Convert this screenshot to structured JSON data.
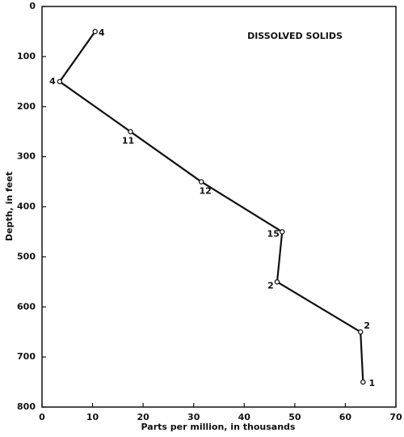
{
  "chart_data": {
    "type": "line",
    "title": "DISSOLVED SOLIDS",
    "x_label": "Parts per million, in thousands",
    "y_label": "Depth, in feet",
    "x": [
      10.5,
      3.5,
      17.5,
      31.5,
      47.5,
      46.5,
      63,
      63.5
    ],
    "values": [
      50,
      150,
      250,
      350,
      450,
      550,
      650,
      750
    ],
    "sample_counts": [
      4,
      4,
      11,
      12,
      15,
      2,
      2,
      1
    ],
    "color": "#111111",
    "xlim": [
      0,
      70
    ],
    "xticks": [
      0,
      10,
      20,
      30,
      40,
      50,
      60,
      70
    ],
    "ylim": [
      0,
      800
    ],
    "yticks": [
      0,
      100,
      200,
      300,
      400,
      500,
      600,
      700,
      800
    ],
    "y_inverted": true,
    "grid": false
  }
}
